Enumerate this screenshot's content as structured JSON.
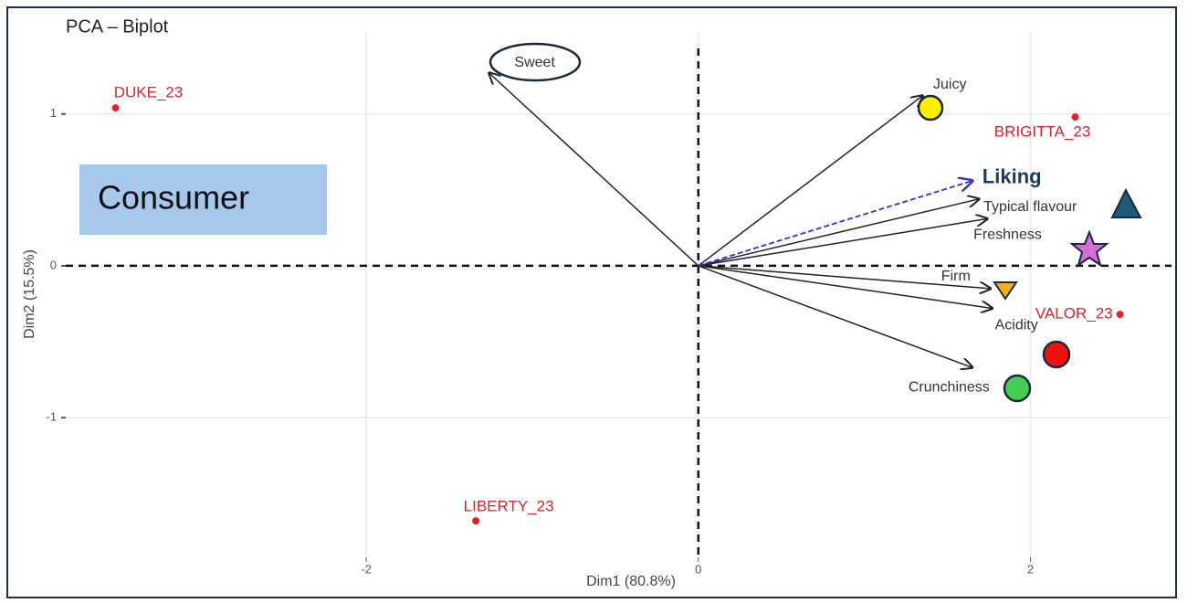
{
  "chart_data": {
    "type": "biplot",
    "title": "PCA – Biplot",
    "annotation": "Consumer",
    "xlabel": "Dim1 (80.8%)",
    "ylabel": "Dim2 (15.5%)",
    "xlim": [
      -3.81,
      2.85
    ],
    "ylim": [
      -1.92,
      1.54
    ],
    "xticks": [
      -2,
      0,
      2
    ],
    "yticks": [
      -1,
      0,
      1
    ],
    "grid": true,
    "points": {
      "color": "#e0202a",
      "names": [
        "DUKE_23",
        "BRIGITTA_23",
        "VALOR_23",
        "LIBERTY_23"
      ],
      "x": [
        -3.51,
        2.27,
        2.54,
        -1.34
      ],
      "y": [
        1.04,
        0.98,
        -0.32,
        -1.68
      ]
    },
    "variables": {
      "color": "#222222",
      "names": [
        "Sweet",
        "Juicy",
        "Typical flavour",
        "Freshness",
        "Firm",
        "Acidity",
        "Crunchiness"
      ],
      "x": [
        -1.26,
        1.35,
        1.69,
        1.74,
        1.76,
        1.77,
        1.65
      ],
      "y": [
        1.27,
        1.12,
        0.44,
        0.31,
        -0.15,
        -0.28,
        -0.67
      ]
    },
    "supplementary": {
      "color": "#3333cc",
      "names": [
        "Liking"
      ],
      "x": [
        1.65
      ],
      "y": [
        0.56
      ]
    }
  }
}
